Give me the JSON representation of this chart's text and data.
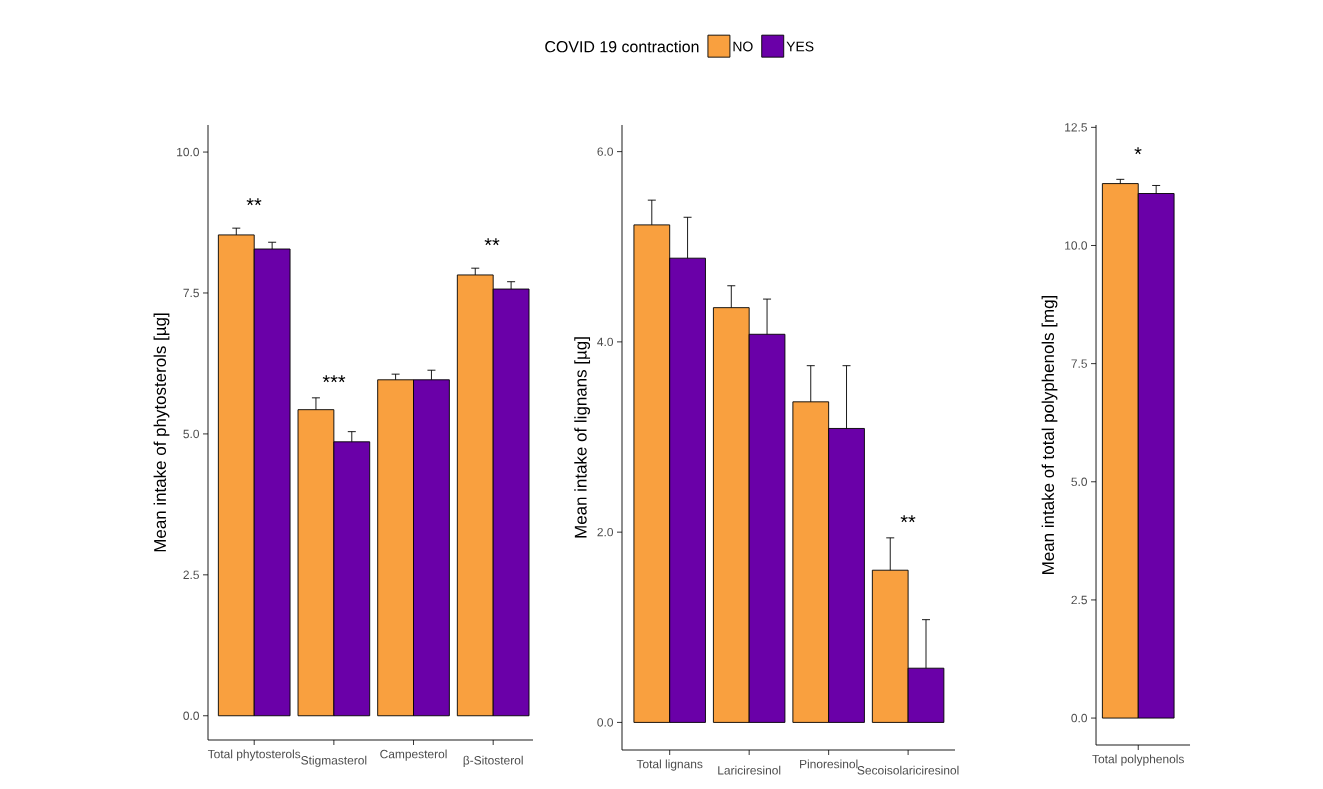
{
  "chart_data": [
    {
      "type": "bar",
      "legend": "top",
      "legend_title": "COVID 19 contraction",
      "ylabel": "Mean intake of phytosterols [µg]",
      "categories": [
        "Total phytosterols",
        "Stigmasterol",
        "Campesterol",
        "β-Sitosterol"
      ],
      "series": [
        {
          "name": "NO",
          "color": "#f9a03f",
          "values": [
            8.53,
            5.43,
            5.96,
            7.82
          ],
          "errors": [
            0.12,
            0.21,
            0.1,
            0.12
          ]
        },
        {
          "name": "YES",
          "color": "#6a00a8",
          "values": [
            8.28,
            4.86,
            5.96,
            7.57
          ],
          "errors": [
            0.12,
            0.18,
            0.17,
            0.13
          ]
        }
      ],
      "ylim": [
        -0.43,
        10.48
      ],
      "yticks": [
        {
          "value": 0,
          "label": "0.0"
        },
        {
          "value": 2.5,
          "label": "2.5"
        },
        {
          "value": 5,
          "label": "5.0"
        },
        {
          "value": 7.5,
          "label": "7.5"
        },
        {
          "value": 10,
          "label": "10.0"
        }
      ],
      "annotations": [
        "**",
        "***",
        "**"
      ]
    },
    {
      "type": "bar",
      "ylabel": "Mean intake of lignans [µg]",
      "categories": [
        "Total lignans",
        "Lariciresinol",
        "Pinoresinol",
        "Secoisolariciresinol"
      ],
      "series": [
        {
          "color": "#f9a03f",
          "values": [
            5.23,
            4.36,
            3.37,
            1.6
          ],
          "errors": [
            0.26,
            0.23,
            0.38,
            0.34
          ]
        },
        {
          "color": "#6a00a8",
          "values": [
            4.88,
            4.08,
            3.09,
            0.57
          ],
          "errors": [
            0.43,
            0.37,
            0.66,
            0.51
          ]
        }
      ],
      "ylim": [
        -0.29,
        6.28
      ],
      "yticks": [
        {
          "value": 0,
          "label": "0.0"
        },
        {
          "value": 2,
          "label": "2.0"
        },
        {
          "value": 4,
          "label": "4.0"
        },
        {
          "value": 6,
          "label": "6.0"
        }
      ],
      "annotations": [
        "**"
      ]
    },
    {
      "type": "bar",
      "ylabel": "Mean intake of total polyphenols [mg]",
      "categories": [
        "Total polyphenols"
      ],
      "series": [
        {
          "color": "#f9a03f",
          "values": [
            11.31
          ],
          "errors": [
            0.09
          ]
        },
        {
          "color": "#6a00a8",
          "values": [
            11.1
          ],
          "errors": [
            0.17
          ]
        }
      ],
      "ylim": [
        -0.57,
        12.55
      ],
      "yticks": [
        {
          "value": 0,
          "label": "0.0"
        },
        {
          "value": 2.5,
          "label": "2.5"
        },
        {
          "value": 5,
          "label": "5.0"
        },
        {
          "value": 7.5,
          "label": "7.5"
        },
        {
          "value": 10,
          "label": "10.0"
        },
        {
          "value": 12.5,
          "label": "12.5"
        }
      ],
      "annotations": [
        "*"
      ]
    }
  ]
}
